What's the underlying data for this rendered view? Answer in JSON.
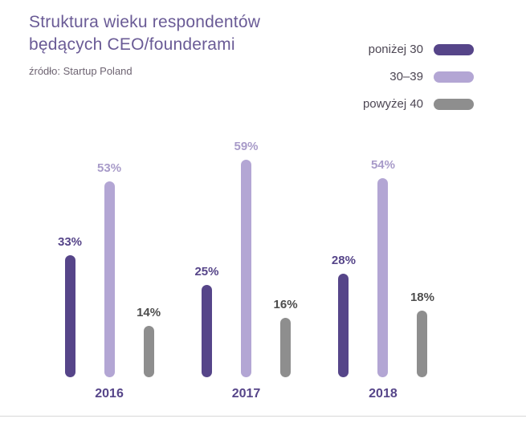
{
  "title": {
    "line1": "Struktura wieku respondentów",
    "line2": "będących CEO/founderami"
  },
  "source": "źródło: Startup Poland",
  "legend": [
    {
      "label": "poniżej 30",
      "color": "#564589"
    },
    {
      "label": "30–39",
      "color": "#b3a6d4"
    },
    {
      "label": "powyżej 40",
      "color": "#8e8e8e"
    }
  ],
  "colors": {
    "title": "#6a5b96",
    "category_label": "#564589",
    "divider": "#d8d8d8"
  },
  "chart_data": {
    "type": "bar",
    "title": "Struktura wieku respondentów będących CEO/founderami",
    "categories": [
      "2016",
      "2017",
      "2018"
    ],
    "series": [
      {
        "name": "poniżej 30",
        "color": "#564589",
        "label_color": "#564589",
        "values": [
          33,
          25,
          28
        ]
      },
      {
        "name": "30–39",
        "color": "#b3a6d4",
        "label_color": "#a89bc9",
        "values": [
          53,
          59,
          54
        ]
      },
      {
        "name": "powyżej 40",
        "color": "#8e8e8e",
        "label_color": "#4d4d4d",
        "values": [
          14,
          16,
          18
        ]
      }
    ],
    "unit": "%",
    "xlabel": "",
    "ylabel": "",
    "ylim": [
      0,
      63
    ],
    "grid": false,
    "legend_position": "top-right",
    "bar_style": "rounded"
  }
}
